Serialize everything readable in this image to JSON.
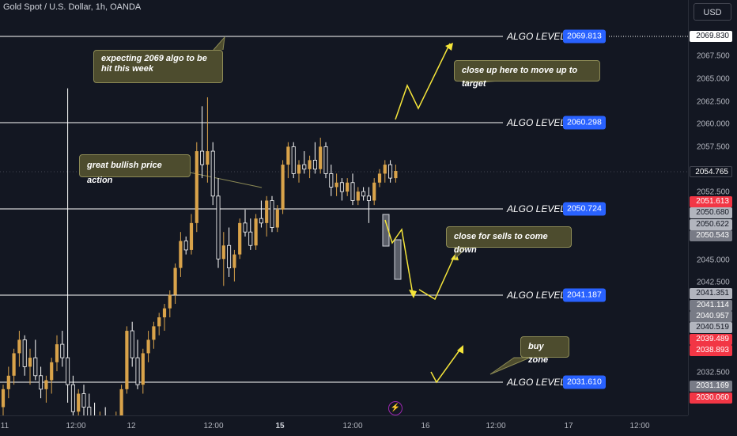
{
  "header": {
    "symbol": "Gold Spot / U.S. Dollar, 1h, OANDA",
    "currency": "USD"
  },
  "price_axis": {
    "ticks": [
      "2067.500",
      "2065.000",
      "2062.500",
      "2060.000",
      "2057.500",
      "2052.500",
      "2045.000",
      "2042.500",
      "2032.500"
    ],
    "tags": [
      {
        "value": "2069.830",
        "style": "white"
      },
      {
        "value": "2054.765",
        "style": "current"
      },
      {
        "value": "2051.613",
        "style": "red"
      },
      {
        "value": "2050.680",
        "style": "gray"
      },
      {
        "value": "2050.622",
        "style": "gray"
      },
      {
        "value": "2050.543",
        "style": "dgray"
      },
      {
        "value": "2041.351",
        "style": "gray"
      },
      {
        "value": "2041.114",
        "style": "dgray"
      },
      {
        "value": "2040.957",
        "style": "dgray"
      },
      {
        "value": "2040.519",
        "style": "gray"
      },
      {
        "value": "2039.489",
        "style": "red"
      },
      {
        "value": "2038.893",
        "style": "red"
      },
      {
        "value": "2031.169",
        "style": "dgray"
      },
      {
        "value": "2030.060",
        "style": "red"
      }
    ]
  },
  "time_axis": {
    "labels": [
      {
        "text": "11",
        "bold": false
      },
      {
        "text": "12:00",
        "bold": false
      },
      {
        "text": "12",
        "bold": false
      },
      {
        "text": "12:00",
        "bold": false
      },
      {
        "text": "15",
        "bold": true
      },
      {
        "text": "12:00",
        "bold": false
      },
      {
        "text": "16",
        "bold": false
      },
      {
        "text": "12:00",
        "bold": false
      },
      {
        "text": "17",
        "bold": false
      },
      {
        "text": "12:00",
        "bold": false
      }
    ]
  },
  "algo_levels": [
    {
      "label": "ALGO LEVEL",
      "value": "2069.813"
    },
    {
      "label": "ALGO LEVEL",
      "value": "2060.298"
    },
    {
      "label": "ALGO LEVEL",
      "value": "2050.724"
    },
    {
      "label": "ALGO LEVEL",
      "value": "2041.187"
    },
    {
      "label": "ALGO LEVEL",
      "value": "2031.610"
    }
  ],
  "annotations": {
    "expect": "expecting 2069 algo to be hit this week",
    "bullish": "great bullish price action",
    "close_up": "close up here to move up to target",
    "close_sells": "close for sells to come down",
    "buy_zone": "buy zone"
  },
  "colors": {
    "background": "#131722",
    "bull": "#d9a34a",
    "bear": "#ffffff",
    "algo_tag": "#2962ff",
    "arrow": "#f5e53a",
    "callout_bg": "#4d4c2e"
  },
  "chart_data": {
    "type": "candlestick",
    "candles": [
      [
        2028.5,
        2031.0,
        2027.0,
        2030.5
      ],
      [
        2030.5,
        2033.0,
        2029.5,
        2032.0
      ],
      [
        2032.0,
        2035.0,
        2031.0,
        2034.5
      ],
      [
        2034.5,
        2037.0,
        2033.0,
        2036.0
      ],
      [
        2036.0,
        2036.5,
        2032.0,
        2033.0
      ],
      [
        2033.0,
        2035.0,
        2031.0,
        2034.0
      ],
      [
        2034.0,
        2036.0,
        2031.5,
        2032.0
      ],
      [
        2032.0,
        2033.0,
        2029.5,
        2030.5
      ],
      [
        2030.5,
        2032.0,
        2029.0,
        2031.5
      ],
      [
        2031.5,
        2034.0,
        2030.0,
        2033.5
      ],
      [
        2033.5,
        2036.5,
        2032.5,
        2035.5
      ],
      [
        2035.5,
        2037.0,
        2033.0,
        2034.0
      ],
      [
        2034.0,
        2064.0,
        2029.0,
        2031.0
      ],
      [
        2031.0,
        2032.0,
        2027.0,
        2028.0
      ],
      [
        2028.0,
        2030.5,
        2027.0,
        2030.0
      ],
      [
        2030.0,
        2031.0,
        2027.5,
        2028.5
      ],
      [
        2028.5,
        2030.0,
        2026.5,
        2027.5
      ],
      [
        2027.5,
        2029.0,
        2026.0,
        2026.5
      ],
      [
        2026.5,
        2028.0,
        2026.0,
        2027.5
      ],
      [
        2027.5,
        2028.5,
        2025.0,
        2026.0
      ],
      [
        2026.0,
        2027.0,
        2024.5,
        2025.5
      ],
      [
        2025.5,
        2028.0,
        2024.0,
        2027.5
      ],
      [
        2027.5,
        2031.0,
        2027.0,
        2030.5
      ],
      [
        2030.5,
        2037.5,
        2030.0,
        2037.0
      ],
      [
        2037.0,
        2038.0,
        2033.0,
        2034.0
      ],
      [
        2034.0,
        2036.0,
        2030.5,
        2031.0
      ],
      [
        2031.0,
        2035.0,
        2030.0,
        2034.5
      ],
      [
        2034.5,
        2037.0,
        2033.5,
        2036.0
      ],
      [
        2036.0,
        2038.0,
        2035.0,
        2037.5
      ],
      [
        2037.5,
        2039.0,
        2036.5,
        2038.5
      ],
      [
        2038.5,
        2040.0,
        2037.0,
        2039.5
      ],
      [
        2039.5,
        2041.5,
        2038.5,
        2041.0
      ],
      [
        2041.0,
        2044.5,
        2040.0,
        2044.0
      ],
      [
        2044.0,
        2048.0,
        2043.0,
        2047.0
      ],
      [
        2047.0,
        2047.5,
        2045.5,
        2046.0
      ],
      [
        2046.0,
        2050.0,
        2045.5,
        2049.0
      ],
      [
        2049.0,
        2058.0,
        2048.0,
        2057.0
      ],
      [
        2057.0,
        2062.0,
        2054.0,
        2055.5
      ],
      [
        2055.5,
        2063.0,
        2053.5,
        2057.0
      ],
      [
        2057.0,
        2058.0,
        2051.0,
        2052.0
      ],
      [
        2052.0,
        2054.0,
        2044.0,
        2045.0
      ],
      [
        2045.0,
        2048.0,
        2042.0,
        2046.5
      ],
      [
        2046.5,
        2048.5,
        2043.0,
        2044.0
      ],
      [
        2044.0,
        2046.0,
        2042.5,
        2045.5
      ],
      [
        2045.5,
        2049.5,
        2045.0,
        2049.0
      ],
      [
        2049.0,
        2050.5,
        2047.5,
        2048.0
      ],
      [
        2048.0,
        2049.5,
        2046.0,
        2046.5
      ],
      [
        2046.5,
        2050.0,
        2046.0,
        2049.5
      ],
      [
        2049.5,
        2051.5,
        2048.5,
        2049.0
      ],
      [
        2049.0,
        2052.0,
        2047.5,
        2051.5
      ],
      [
        2051.5,
        2052.0,
        2048.0,
        2048.5
      ],
      [
        2048.5,
        2051.0,
        2048.0,
        2050.5
      ],
      [
        2050.5,
        2056.0,
        2050.0,
        2055.5
      ],
      [
        2055.5,
        2058.0,
        2054.0,
        2057.5
      ],
      [
        2057.5,
        2058.0,
        2054.0,
        2054.5
      ],
      [
        2054.5,
        2056.0,
        2053.5,
        2055.5
      ],
      [
        2055.5,
        2057.0,
        2054.5,
        2055.0
      ],
      [
        2055.0,
        2056.5,
        2054.0,
        2056.0
      ],
      [
        2056.0,
        2058.0,
        2054.5,
        2055.0
      ],
      [
        2055.0,
        2058.5,
        2054.5,
        2057.5
      ],
      [
        2057.5,
        2058.0,
        2054.0,
        2054.5
      ],
      [
        2054.5,
        2055.5,
        2052.0,
        2053.0
      ],
      [
        2053.0,
        2054.5,
        2052.0,
        2053.5
      ],
      [
        2053.5,
        2054.0,
        2051.5,
        2052.5
      ],
      [
        2052.5,
        2054.0,
        2052.0,
        2053.5
      ],
      [
        2053.5,
        2054.5,
        2051.0,
        2051.5
      ],
      [
        2051.5,
        2053.0,
        2051.0,
        2052.5
      ],
      [
        2052.5,
        2053.0,
        2051.5,
        2052.0
      ],
      [
        2052.0,
        2053.0,
        2049.0,
        2051.5
      ],
      [
        2051.5,
        2054.0,
        2051.0,
        2053.5
      ],
      [
        2053.5,
        2055.0,
        2053.0,
        2054.5
      ],
      [
        2054.5,
        2056.0,
        2053.5,
        2055.5
      ],
      [
        2055.5,
        2056.0,
        2053.5,
        2054.0
      ],
      [
        2054.0,
        2055.5,
        2053.5,
        2054.8
      ]
    ]
  }
}
